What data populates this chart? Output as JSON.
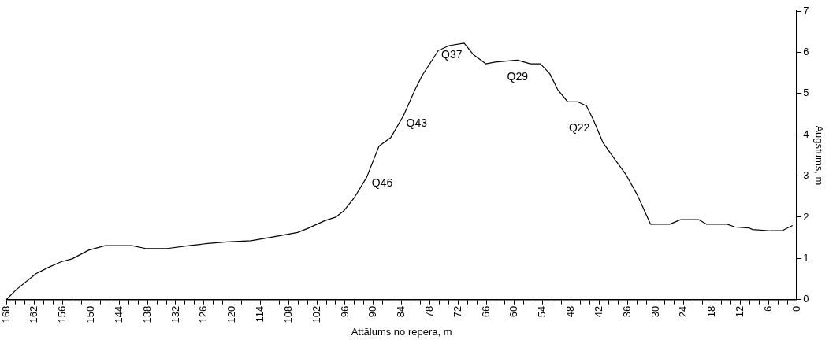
{
  "chart_data": {
    "type": "line",
    "xlabel": "Attālums no repera, m",
    "ylabel": "Augstums, m",
    "x": [
      168,
      165.8,
      161.7,
      159.1,
      156.3,
      154,
      150.5,
      147,
      141.3,
      138.4,
      133.8,
      129.2,
      125.2,
      121.1,
      116,
      111.4,
      106.1,
      103.9,
      100.4,
      98,
      96.3,
      94,
      91.4,
      88.8,
      86.3,
      83.6,
      81.1,
      79.6,
      76.2,
      73.9,
      70.7,
      68.7,
      66.1,
      64.1,
      59.4,
      56.6,
      54.5,
      52.5,
      50.8,
      48.7,
      46.6,
      44.7,
      43.2,
      41.2,
      38.6,
      36.3,
      33.9,
      31.1,
      27,
      24.7,
      20.9,
      19.2,
      14.8,
      13.1,
      10.2,
      9.4,
      5.6,
      3.2,
      0.9
    ],
    "series": [
      {
        "color": "#000000",
        "values": [
          0,
          0.25,
          0.63,
          0.78,
          0.92,
          0.99,
          1.2,
          1.31,
          1.31,
          1.24,
          1.24,
          1.31,
          1.36,
          1.4,
          1.43,
          1.52,
          1.63,
          1.73,
          1.91,
          2.0,
          2.15,
          2.48,
          2.97,
          3.72,
          3.93,
          4.46,
          5.1,
          5.44,
          6.04,
          6.16,
          6.22,
          5.94,
          5.72,
          5.76,
          5.81,
          5.72,
          5.72,
          5.48,
          5.09,
          4.8,
          4.8,
          4.7,
          4.35,
          3.81,
          3.39,
          3.03,
          2.54,
          1.83,
          1.83,
          1.94,
          1.94,
          1.83,
          1.83,
          1.76,
          1.74,
          1.7,
          1.67,
          1.67,
          1.8
        ]
      }
    ],
    "xlim": [
      168,
      0
    ],
    "xticks": [
      168,
      {
        "value": 166,
        "label": null
      },
      {
        "value": 164,
        "label": null
      },
      162,
      {
        "value": 160,
        "label": null
      },
      {
        "value": 158,
        "label": null
      },
      156,
      {
        "value": 154,
        "label": null
      },
      {
        "value": 152,
        "label": null
      },
      150,
      {
        "value": 148,
        "label": null
      },
      {
        "value": 146,
        "label": null
      },
      144,
      {
        "value": 142,
        "label": null
      },
      {
        "value": 140,
        "label": null
      },
      138,
      {
        "value": 136,
        "label": null
      },
      {
        "value": 134,
        "label": null
      },
      132,
      {
        "value": 130,
        "label": null
      },
      {
        "value": 128,
        "label": null
      },
      126,
      {
        "value": 124,
        "label": null
      },
      {
        "value": 122,
        "label": null
      },
      120,
      {
        "value": 118,
        "label": null
      },
      {
        "value": 116,
        "label": null
      },
      114,
      {
        "value": 112,
        "label": null
      },
      {
        "value": 110,
        "label": null
      },
      108,
      {
        "value": 106,
        "label": null
      },
      {
        "value": 104,
        "label": null
      },
      102,
      {
        "value": 100,
        "label": null
      },
      {
        "value": 98,
        "label": null
      },
      96,
      {
        "value": 94,
        "label": null
      },
      {
        "value": 92,
        "label": null
      },
      90,
      {
        "value": 88,
        "label": null
      },
      {
        "value": 86,
        "label": null
      },
      84,
      {
        "value": 82,
        "label": null
      },
      {
        "value": 80,
        "label": null
      },
      78,
      {
        "value": 76,
        "label": null
      },
      {
        "value": 74,
        "label": null
      },
      72,
      {
        "value": 70,
        "label": null
      },
      {
        "value": 68,
        "label": null
      },
      66,
      {
        "value": 64,
        "label": null
      },
      {
        "value": 62,
        "label": null
      },
      60,
      {
        "value": 58,
        "label": null
      },
      {
        "value": 56,
        "label": null
      },
      54,
      {
        "value": 52,
        "label": null
      },
      {
        "value": 50,
        "label": null
      },
      48,
      {
        "value": 46,
        "label": null
      },
      {
        "value": 44,
        "label": null
      },
      42,
      {
        "value": 40,
        "label": null
      },
      {
        "value": 38,
        "label": null
      },
      36,
      {
        "value": 34,
        "label": null
      },
      {
        "value": 32,
        "label": null
      },
      30,
      {
        "value": 28,
        "label": null
      },
      {
        "value": 26,
        "label": null
      },
      24,
      {
        "value": 22,
        "label": null
      },
      {
        "value": 20,
        "label": null
      },
      18,
      {
        "value": 16,
        "label": null
      },
      {
        "value": 14,
        "label": null
      },
      12,
      {
        "value": 10,
        "label": null
      },
      {
        "value": 8,
        "label": null
      },
      6,
      {
        "value": 4,
        "label": null
      },
      {
        "value": 2,
        "label": null
      },
      0
    ],
    "ylim": [
      0,
      7
    ],
    "yticks": [
      0,
      1,
      2,
      3,
      4,
      5,
      6,
      7
    ],
    "grid": false,
    "legend": false,
    "marker": "none",
    "line_style": "solid",
    "annotations": [
      {
        "text": "Q46",
        "x": 91,
        "y": 3.0
      },
      {
        "text": "Q43",
        "x": 84,
        "y": 4.3
      },
      {
        "text": "Q37",
        "x": 72,
        "y": 6.15
      },
      {
        "text": "Q29",
        "x": 58,
        "y": 5.78
      },
      {
        "text": "Q22",
        "x": 43,
        "y": 4.35
      }
    ]
  }
}
